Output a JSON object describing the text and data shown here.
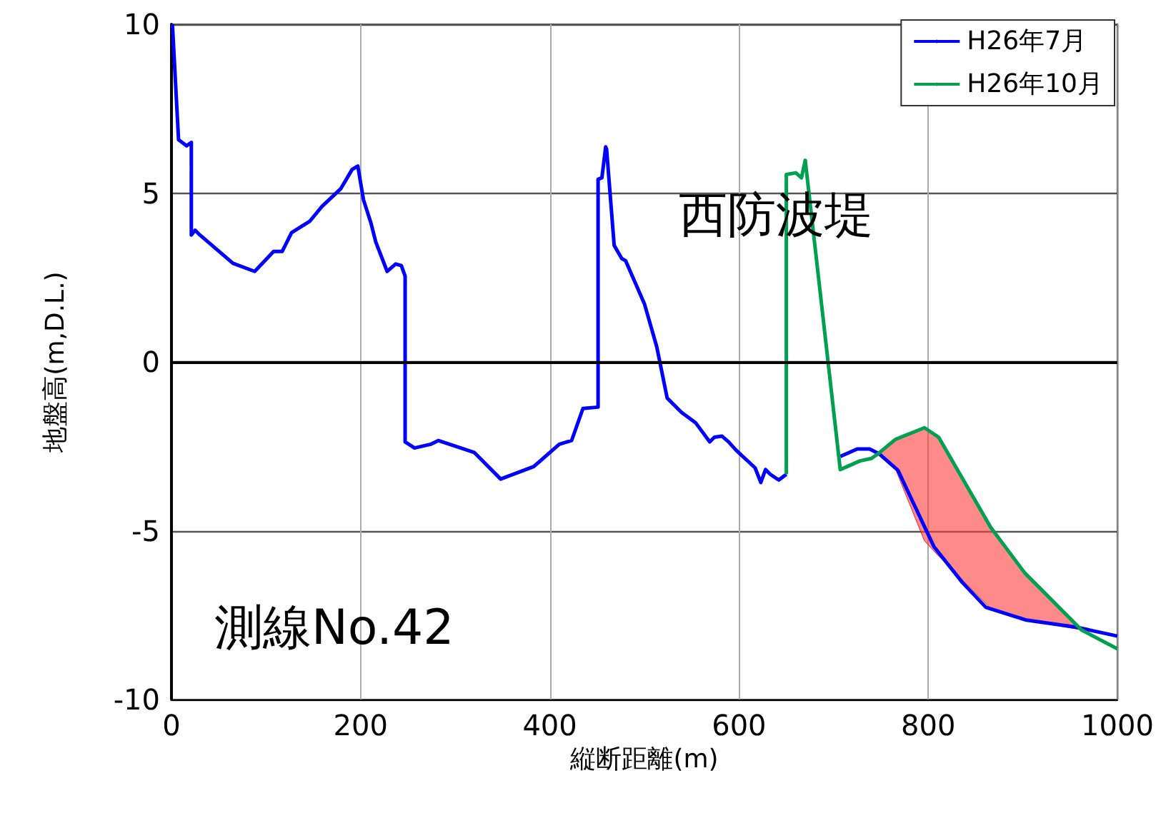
{
  "chart_data": {
    "type": "line",
    "xlabel": "縦断距離(m)",
    "ylabel": "地盤高(m,D.L.)",
    "xlim": [
      0,
      1000
    ],
    "xticks": [
      0,
      200,
      400,
      600,
      800,
      1000
    ],
    "ylim": [
      -10,
      10
    ],
    "yticks": [
      -10,
      -5,
      0,
      5,
      10
    ],
    "grid": true,
    "legend": "top right",
    "marker": "none",
    "line_style": "solid",
    "ref_lines": [
      {
        "axis": "y",
        "value": 0,
        "color": "#000000"
      }
    ],
    "annotations": [
      "西防波堤",
      "測線No.42"
    ],
    "series": [
      {
        "name": "H26年7月",
        "color": "#0000ff",
        "x": [
          1,
          7.5,
          16,
          21,
          21,
          25,
          30,
          65,
          88,
          108,
          117,
          127,
          146,
          159,
          179,
          191,
          197,
          203,
          211,
          216,
          228,
          237,
          243,
          247,
          247,
          257,
          274,
          282,
          320,
          348,
          383,
          410,
          423,
          435,
          451,
          451,
          455,
          459,
          460,
          468,
          476,
          480,
          500,
          513,
          524,
          539,
          554,
          569,
          574,
          582,
          589,
          597,
          617,
          623,
          628,
          633,
          642,
          650
        ],
        "values": [
          10,
          6.58,
          6.4,
          6.5,
          3.76,
          3.9,
          3.76,
          2.92,
          2.68,
          3.27,
          3.27,
          3.83,
          4.16,
          4.6,
          5.13,
          5.7,
          5.8,
          4.8,
          4.1,
          3.55,
          2.68,
          2.9,
          2.85,
          2.54,
          -2.37,
          -2.55,
          -2.44,
          -2.33,
          -2.68,
          -3.47,
          -3.1,
          -2.44,
          -2.33,
          -1.38,
          -1.34,
          5.41,
          5.45,
          6.37,
          6.3,
          3.45,
          3.06,
          3.0,
          1.72,
          0.45,
          -1.07,
          -1.49,
          -1.8,
          -2.37,
          -2.23,
          -2.2,
          -2.37,
          -2.62,
          -3.14,
          -3.57,
          -3.19,
          -3.33,
          -3.5,
          -3.33
        ]
      },
      {
        "color": "#0000ff",
        "x": [
          707,
          725,
          738,
          748,
          768,
          806,
          836,
          861,
          904,
          957,
          1000
        ],
        "values": [
          -2.8,
          -2.58,
          -2.58,
          -2.72,
          -3.21,
          -5.47,
          -6.53,
          -7.27,
          -7.65,
          -7.86,
          -8.12
        ]
      },
      {
        "name": "H26年10月",
        "color": "#00a050",
        "x": [
          650,
          650,
          660,
          666,
          670,
          707,
          728,
          740,
          748,
          765,
          796,
          811,
          866,
          902,
          962,
          1000
        ],
        "values": [
          -3.33,
          5.55,
          5.6,
          5.45,
          5.97,
          -3.19,
          -2.93,
          -2.86,
          -2.7,
          -2.3,
          -1.95,
          -2.23,
          -4.9,
          -6.25,
          -7.94,
          -8.5
        ],
        "lower": [
          null,
          null,
          null,
          null,
          null,
          null,
          null,
          null,
          -2.7,
          -3.15,
          -5.3,
          -5.75,
          -7.3,
          -7.64,
          -7.94,
          null
        ],
        "upper": [
          null,
          null,
          null,
          null,
          null,
          null,
          null,
          null,
          -2.7,
          -2.3,
          -1.95,
          -2.23,
          -4.9,
          -6.25,
          -7.94,
          null
        ]
      }
    ]
  }
}
